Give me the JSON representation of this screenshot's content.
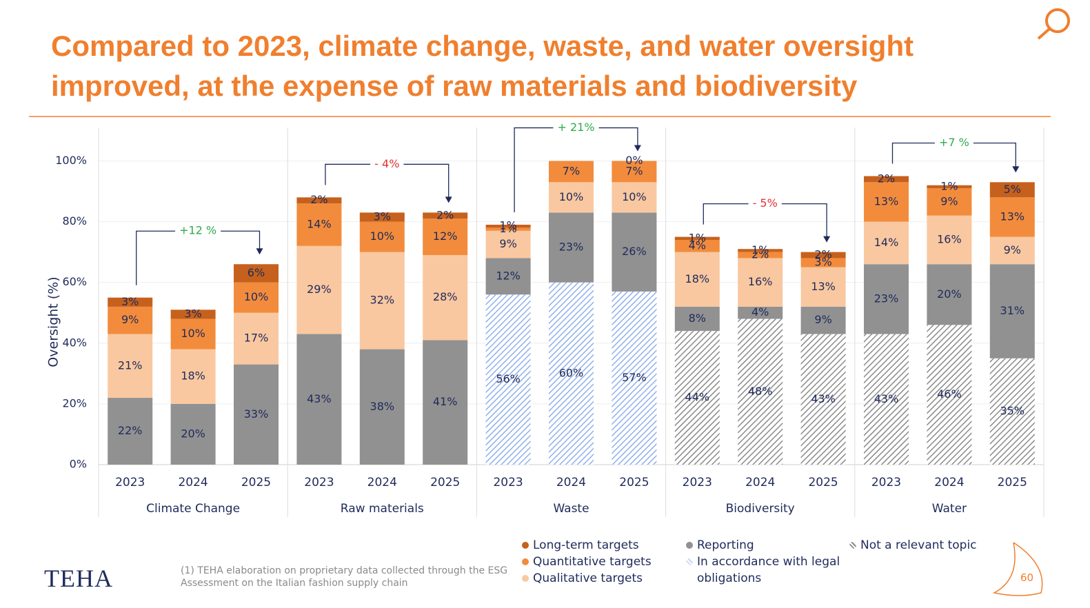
{
  "chart_data": {
    "type": "stacked-bar",
    "title": "Compared to 2023, climate change, waste, and water oversight improved, at the expense of raw materials and biodiversity",
    "y_label": "Oversight (%)",
    "ylim": [
      0,
      111
    ],
    "yticks": [
      {
        "value": 0,
        "label": "0%"
      },
      {
        "value": 20,
        "label": "20%"
      },
      {
        "value": 40,
        "label": "40%"
      },
      {
        "value": 60,
        "label": "60%"
      },
      {
        "value": 80,
        "label": "80%"
      },
      {
        "value": 100,
        "label": "100%"
      }
    ],
    "grid": true,
    "groups": [
      {
        "name": "Climate Change",
        "categories": [
          "2023",
          "2024",
          "2025"
        ],
        "change": "+12 %",
        "change_color": "#2eaa4a"
      },
      {
        "name": "Raw materials",
        "categories": [
          "2023",
          "2024",
          "2025"
        ],
        "change": "- 4%",
        "change_color": "#e53030"
      },
      {
        "name": "Waste",
        "categories": [
          "2023",
          "2024",
          "2025"
        ],
        "change": "+ 21%",
        "change_color": "#2eaa4a"
      },
      {
        "name": "Biodiversity",
        "categories": [
          "2023",
          "2024",
          "2025"
        ],
        "change": "- 5%",
        "change_color": "#e53030"
      },
      {
        "name": "Water",
        "categories": [
          "2023",
          "2024",
          "2025"
        ],
        "change": "+7 %",
        "change_color": "#2eaa4a"
      }
    ],
    "series": [
      {
        "name": "Not a relevant topic",
        "color": "#8a8a8a",
        "pattern": "hatch",
        "values": [
          null,
          null,
          null,
          null,
          null,
          null,
          null,
          null,
          null,
          44,
          48,
          43,
          43,
          46,
          35
        ],
        "value_labels": [
          null,
          null,
          null,
          null,
          null,
          null,
          null,
          null,
          null,
          "44%",
          "48%",
          "43%",
          "43%",
          "46%",
          "35%"
        ]
      },
      {
        "name": "In accordance with legal obligations",
        "color": "#8fb0ea",
        "pattern": "hatch",
        "values": [
          null,
          null,
          null,
          null,
          null,
          null,
          56,
          60,
          57,
          null,
          null,
          null,
          null,
          null,
          null
        ],
        "value_labels": [
          null,
          null,
          null,
          null,
          null,
          null,
          "56%",
          "60%",
          "57%",
          null,
          null,
          null,
          null,
          null,
          null
        ]
      },
      {
        "name": "Reporting",
        "color": "#919191",
        "values": [
          22,
          20,
          33,
          43,
          38,
          41,
          12,
          23,
          26,
          8,
          4,
          9,
          23,
          20,
          31
        ],
        "value_labels": [
          "22%",
          "20%",
          "33%",
          "43%",
          "38%",
          "41%",
          "12%",
          "23%",
          "26%",
          "8%",
          "4%",
          "9%",
          "23%",
          "20%",
          "31%"
        ]
      },
      {
        "name": "Qualitative targets",
        "color": "#f9c8a0",
        "values": [
          21,
          18,
          17,
          29,
          32,
          28,
          9,
          10,
          10,
          18,
          16,
          13,
          14,
          16,
          9
        ],
        "value_labels": [
          "21%",
          "18%",
          "17%",
          "29%",
          "32%",
          "28%",
          "9%",
          "10%",
          "10%",
          "18%",
          "16%",
          "13%",
          "14%",
          "16%",
          "9%"
        ]
      },
      {
        "name": "Quantitative targets",
        "color": "#f28c3c",
        "values": [
          9,
          10,
          10,
          14,
          10,
          12,
          1,
          7,
          7,
          4,
          2,
          3,
          13,
          9,
          13
        ],
        "value_labels": [
          "9%",
          "10%",
          "10%",
          "14%",
          "10%",
          "12%",
          "1%",
          "7%",
          "7%",
          "4%",
          "2%",
          "3%",
          "13%",
          "9%",
          "13%"
        ]
      },
      {
        "name": "Long-term targets",
        "color": "#c6611d",
        "values": [
          3,
          3,
          6,
          2,
          3,
          2,
          1,
          null,
          0,
          1,
          1,
          2,
          2,
          1,
          5
        ],
        "value_labels": [
          "3%",
          "3%",
          "6%",
          "2%",
          "3%",
          "2%",
          "1%",
          null,
          "0%",
          "1%",
          "1%",
          "2%",
          "2%",
          "1%",
          "5%"
        ]
      }
    ]
  },
  "footnote": "(1) TEHA elaboration on proprietary data collected through the ESG Assessment on the Italian fashion supply chain",
  "logo": "TEHA",
  "page_number": "60"
}
